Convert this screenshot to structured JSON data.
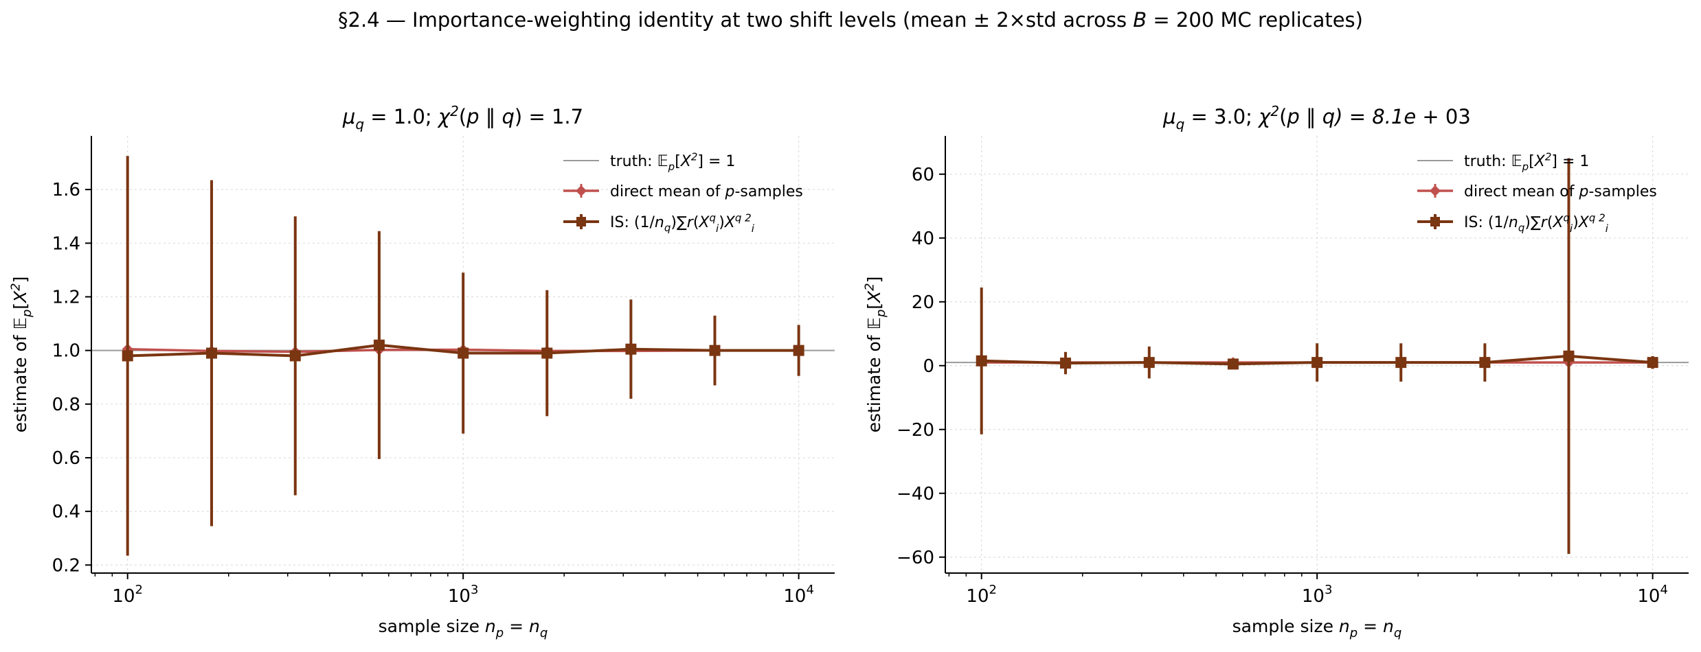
{
  "figure": {
    "suptitle": "§2.4 — Importance-weighting identity at two shift levels  (mean ± 2×std across B = 200 MC replicates)"
  },
  "colors": {
    "truth": "#9a9a9a",
    "direct": "#c0504d",
    "is": "#7a3511",
    "grid": "#dddddd",
    "axis": "#000000"
  },
  "chart_data": [
    {
      "type": "line",
      "title": "μq = 1.0;  χ²(p ‖ q) = 1.7",
      "xlabel": "sample size np = nq",
      "ylabel": "estimate of 𝔼p[X²]",
      "xscale": "log",
      "xlim": [
        78,
        12800
      ],
      "ylim": [
        0.17,
        1.8
      ],
      "xticks": [
        {
          "value": 100,
          "base": "10",
          "exp": "2"
        },
        {
          "value": 1000,
          "base": "10",
          "exp": "3"
        },
        {
          "value": 10000,
          "base": "10",
          "exp": "4"
        }
      ],
      "yticks": [
        {
          "value": 0.2,
          "label": "0.2"
        },
        {
          "value": 0.4,
          "label": "0.4"
        },
        {
          "value": 0.6,
          "label": "0.6"
        },
        {
          "value": 0.8,
          "label": "0.8"
        },
        {
          "value": 1.0,
          "label": "1.0"
        },
        {
          "value": 1.2,
          "label": "1.2"
        },
        {
          "value": 1.4,
          "label": "1.4"
        },
        {
          "value": 1.6,
          "label": "1.6"
        }
      ],
      "grid": true,
      "legend": "upper-right",
      "truth": 1,
      "legend_labels": [
        "truth: 𝔼p[X²] = 1",
        "direct mean of p-samples",
        "IS: (1/nq)∑r(Xᵢq)Xᵢq²"
      ],
      "series": [
        {
          "name": "direct mean of p-samples",
          "marker": "diamond",
          "x": [
            100,
            178,
            316,
            562,
            1000,
            1778,
            3162,
            5623,
            10000
          ],
          "y": [
            1.005,
            0.998,
            0.995,
            1.002,
            1.003,
            0.998,
            0.998,
            1.0,
            1.0
          ],
          "err": [
            0.09,
            0.067,
            0.05,
            0.038,
            0.028,
            0.022,
            0.016,
            0.012,
            0.009
          ]
        },
        {
          "name": "IS: (1/nq)∑r(Xᵢq)Xᵢq²",
          "marker": "square",
          "x": [
            100,
            178,
            316,
            562,
            1000,
            1778,
            3162,
            5623,
            10000
          ],
          "y": [
            0.98,
            0.99,
            0.98,
            1.02,
            0.99,
            0.99,
            1.005,
            1.0,
            1.0
          ],
          "err": [
            0.745,
            0.645,
            0.52,
            0.425,
            0.3,
            0.235,
            0.185,
            0.13,
            0.095
          ]
        }
      ]
    },
    {
      "type": "line",
      "title": "μq = 3.0;  χ²(p ‖ q) = 8.1e+03",
      "xlabel": "sample size np = nq",
      "ylabel": "estimate of 𝔼p[X²]",
      "xscale": "log",
      "xlim": [
        78,
        12800
      ],
      "ylim": [
        -65,
        72
      ],
      "xticks": [
        {
          "value": 100,
          "base": "10",
          "exp": "2"
        },
        {
          "value": 1000,
          "base": "10",
          "exp": "3"
        },
        {
          "value": 10000,
          "base": "10",
          "exp": "4"
        }
      ],
      "yticks": [
        {
          "value": -60,
          "label": "−60"
        },
        {
          "value": -40,
          "label": "−40"
        },
        {
          "value": -20,
          "label": "−20"
        },
        {
          "value": 0,
          "label": "0"
        },
        {
          "value": 20,
          "label": "20"
        },
        {
          "value": 40,
          "label": "40"
        },
        {
          "value": 60,
          "label": "60"
        }
      ],
      "grid": true,
      "legend": "upper-right",
      "truth": 1,
      "legend_labels": [
        "truth: 𝔼p[X²] = 1",
        "direct mean of p-samples",
        "IS: (1/nq)∑r(Xᵢq)Xᵢq²"
      ],
      "series": [
        {
          "name": "direct mean of p-samples",
          "marker": "diamond",
          "x": [
            100,
            178,
            316,
            562,
            1000,
            1778,
            3162,
            5623,
            10000
          ],
          "y": [
            1.0,
            1.0,
            1.0,
            1.0,
            1.0,
            1.0,
            1.0,
            1.0,
            1.0
          ],
          "err": [
            0.09,
            0.067,
            0.05,
            0.038,
            0.028,
            0.022,
            0.016,
            0.012,
            0.009
          ]
        },
        {
          "name": "IS: (1/nq)∑r(Xᵢq)Xᵢq²",
          "marker": "square",
          "x": [
            100,
            178,
            316,
            562,
            1000,
            1778,
            3162,
            5623,
            10000
          ],
          "y": [
            1.5,
            0.8,
            1.0,
            0.5,
            1.0,
            1.0,
            1.0,
            3.0,
            1.0
          ],
          "err": [
            23,
            3.5,
            5.0,
            1.2,
            6.0,
            6.0,
            6.0,
            62,
            2.0
          ]
        }
      ]
    }
  ]
}
